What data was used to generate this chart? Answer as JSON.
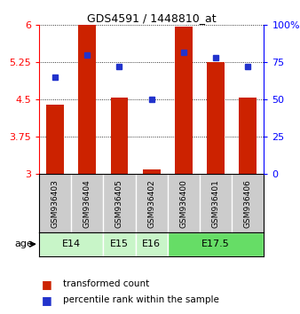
{
  "title": "GDS4591 / 1448810_at",
  "samples": [
    "GSM936403",
    "GSM936404",
    "GSM936405",
    "GSM936402",
    "GSM936400",
    "GSM936401",
    "GSM936406"
  ],
  "red_values": [
    4.4,
    6.0,
    4.55,
    3.1,
    5.97,
    5.25,
    4.55
  ],
  "blue_values": [
    65,
    80,
    72,
    50,
    82,
    78,
    72
  ],
  "ylim_left": [
    3.0,
    6.0
  ],
  "ylim_right": [
    0,
    100
  ],
  "yticks_left": [
    3.0,
    3.75,
    4.5,
    5.25,
    6.0
  ],
  "yticks_right": [
    0,
    25,
    50,
    75,
    100
  ],
  "ytick_labels_left": [
    "3",
    "3.75",
    "4.5",
    "5.25",
    "6"
  ],
  "ytick_labels_right": [
    "0",
    "25",
    "50",
    "75",
    "100%"
  ],
  "age_groups": [
    {
      "label": "E14",
      "samples": [
        "GSM936403",
        "GSM936404"
      ],
      "color": "#c8f5c8"
    },
    {
      "label": "E15",
      "samples": [
        "GSM936405"
      ],
      "color": "#c8f5c8"
    },
    {
      "label": "E16",
      "samples": [
        "GSM936402"
      ],
      "color": "#c8f5c8"
    },
    {
      "label": "E17.5",
      "samples": [
        "GSM936400",
        "GSM936401",
        "GSM936406"
      ],
      "color": "#66dd66"
    }
  ],
  "bar_color": "#cc2200",
  "dot_color": "#2233cc",
  "bar_width": 0.55,
  "plot_bg": "#ffffff",
  "sample_bg": "#cccccc",
  "baseline": 3.0,
  "title_fontsize": 9,
  "tick_fontsize": 8,
  "sample_fontsize": 6.5,
  "age_fontsize": 8,
  "legend_fontsize": 7.5
}
